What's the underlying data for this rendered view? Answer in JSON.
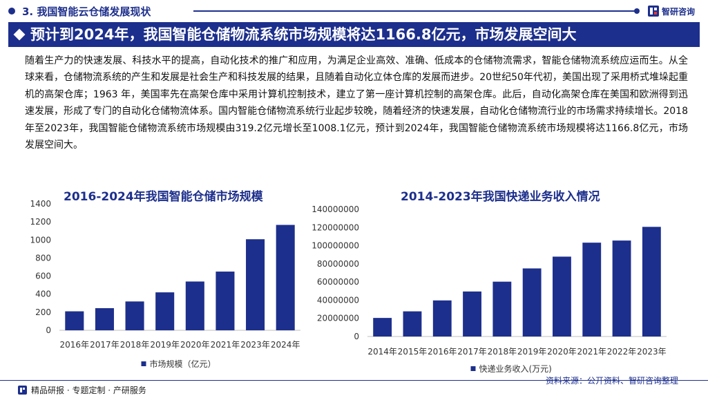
{
  "header": {
    "section_title": "3. 我国智能云仓储发展现状",
    "logo_text": "智研咨询"
  },
  "banner": {
    "title": "预计到2024年，我国智能仓储物流系统市场规模将达1166.8亿元，市场发展空间大"
  },
  "body_text": "随着生产力的快速发展、科技水平的提高，自动化技术的推广和应用，为满足企业高效、准确、低成本的仓储物流需求，智能仓储物流系统应运而生。从全球来看，仓储物流系统的产生和发展是社会生产和科技发展的结果，且随着自动化立体仓库的发展而进步。20世纪50年代初，美国出现了采用桥式堆垛起重机的高架仓库；1963 年，美国率先在高架仓库中采用计算机控制技术，建立了第一座计算机控制的高架仓库。此后，自动化高架仓库在美国和欧洲得到迅速发展，形成了专门的自动化仓储物流体系。国内智能仓储物流系统行业起步较晚，随着经济的快速发展，自动化仓储物流行业的市场需求持续增长。2018年至2023年，我国智能仓储物流系统市场规模由319.2亿元增长至1008.1亿元，预计到2024年，我国智能仓储物流系统市场规模将达1166.8亿元，市场发展空间大。",
  "chart_data": [
    {
      "type": "bar",
      "title": "2016-2024年我国智能仓储市场规模",
      "categories": [
        "2016年",
        "2017年",
        "2018年",
        "2019年",
        "2020年",
        "2021年",
        "2023年",
        "2024年"
      ],
      "series": [
        {
          "name": "市场规模（亿元）",
          "values": [
            210,
            245,
            319.2,
            420,
            540,
            650,
            1008.1,
            1166.8
          ]
        }
      ],
      "ylim": [
        0,
        1400
      ],
      "yticks": [
        0,
        200,
        400,
        600,
        800,
        1000,
        1200,
        1400
      ],
      "grid": false,
      "legend": "bottom",
      "color": "#1d2f8c"
    },
    {
      "type": "bar",
      "title": "2014-2023年我国快递业务收入情况",
      "categories": [
        "2014年",
        "2015年",
        "2016年",
        "2017年",
        "2018年",
        "2019年",
        "2020年",
        "2021年",
        "2022年",
        "2023年"
      ],
      "series": [
        {
          "name": "快递业务收入(万元)",
          "values": [
            20450000,
            27700000,
            39740000,
            49570000,
            60380000,
            74980000,
            87950000,
            103330000,
            105670000,
            120740000
          ]
        }
      ],
      "ylim": [
        0,
        140000000
      ],
      "yticks": [
        0,
        20000000,
        40000000,
        60000000,
        80000000,
        100000000,
        120000000,
        140000000
      ],
      "grid": false,
      "legend": "bottom",
      "color": "#1d2f8c"
    }
  ],
  "footer": {
    "left_text": "精品研报 · 专题定制 · 产研服务",
    "source": "资料来源：公开资料、智研咨询整理"
  }
}
